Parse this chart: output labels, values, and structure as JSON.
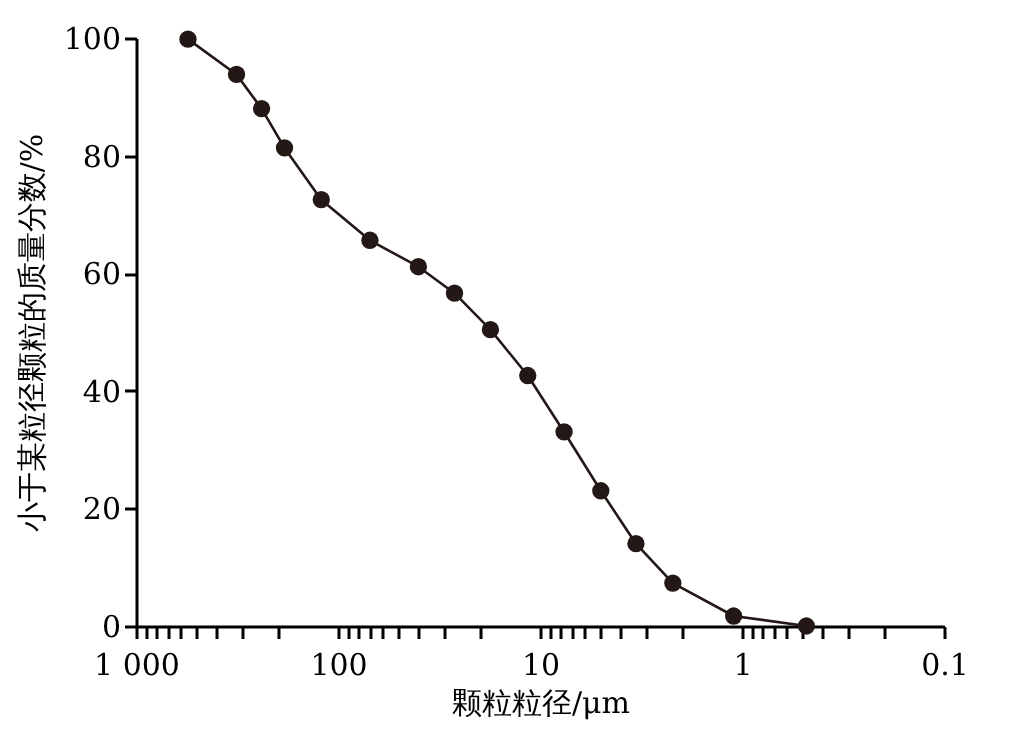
{
  "chart_data": {
    "type": "line",
    "xlabel": "颗粒粒径/μm",
    "ylabel": "小于某粒径颗粒的质量分数/%",
    "x": [
      553,
      318,
      239,
      184,
      121,
      69.5,
      40,
      26.5,
      17.6,
      11.5,
      7.6,
      5.0,
      3.35,
      2.2,
      1.1,
      0.48
    ],
    "series": [
      {
        "color": "#231815",
        "values": [
          99.8,
          93.8,
          88.0,
          81.3,
          72.5,
          65.6,
          61.1,
          56.6,
          50.4,
          42.6,
          33.0,
          23.0,
          14.0,
          7.3,
          1.7,
          0
        ]
      }
    ],
    "log": "x",
    "xlim": [
      1000,
      0.1
    ],
    "ylim": [
      0,
      100
    ],
    "yticks": [
      0,
      20,
      40,
      60,
      80,
      100
    ],
    "xticks": [
      {
        "value": 1000,
        "label": "1 000"
      },
      {
        "value": 900,
        "label": null
      },
      {
        "value": 800,
        "label": null
      },
      {
        "value": 700,
        "label": null
      },
      {
        "value": 600,
        "label": null
      },
      {
        "value": 500,
        "label": null
      },
      {
        "value": 400,
        "label": null
      },
      {
        "value": 300,
        "label": null
      },
      {
        "value": 200,
        "label": null
      },
      {
        "value": 100,
        "label": "100"
      },
      {
        "value": 90,
        "label": null
      },
      {
        "value": 80,
        "label": null
      },
      {
        "value": 70,
        "label": null
      },
      {
        "value": 60,
        "label": null
      },
      {
        "value": 50,
        "label": null
      },
      {
        "value": 40,
        "label": null
      },
      {
        "value": 30,
        "label": null
      },
      {
        "value": 20,
        "label": null
      },
      {
        "value": 10,
        "label": "10"
      },
      {
        "value": 9,
        "label": null
      },
      {
        "value": 8,
        "label": null
      },
      {
        "value": 7,
        "label": null
      },
      {
        "value": 6,
        "label": null
      },
      {
        "value": 5,
        "label": null
      },
      {
        "value": 4,
        "label": null
      },
      {
        "value": 3,
        "label": null
      },
      {
        "value": 2,
        "label": null
      },
      {
        "value": 1,
        "label": "1"
      },
      {
        "value": 0.9,
        "label": null
      },
      {
        "value": 0.8,
        "label": null
      },
      {
        "value": 0.7,
        "label": null
      },
      {
        "value": 0.6,
        "label": null
      },
      {
        "value": 0.5,
        "label": null
      },
      {
        "value": 0.4,
        "label": null
      },
      {
        "value": 0.3,
        "label": null
      },
      {
        "value": 0.2,
        "label": null
      },
      {
        "value": 0.1,
        "label": "0.1"
      }
    ],
    "marker": "circle",
    "line_style": "solid",
    "grid": false
  }
}
